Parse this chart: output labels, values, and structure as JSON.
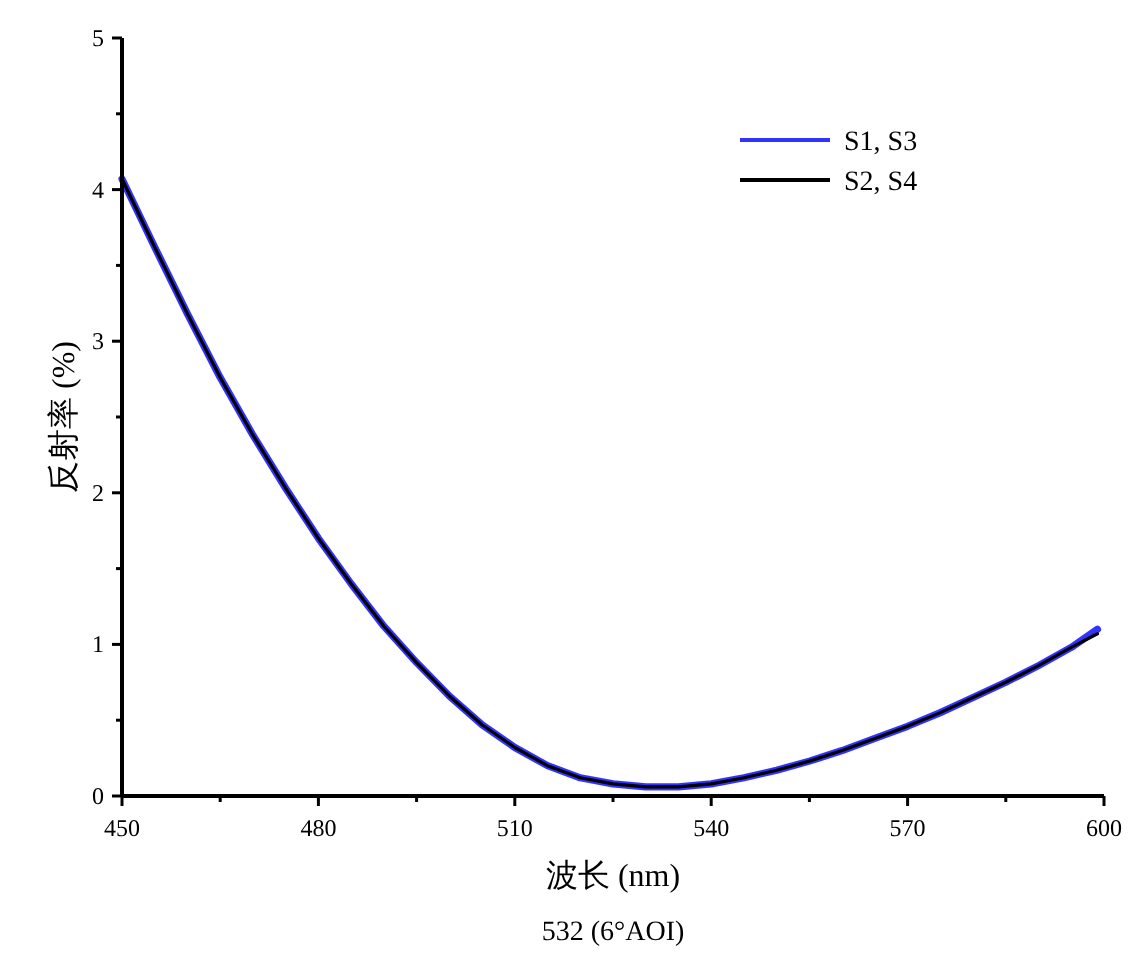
{
  "chart_data": {
    "type": "line",
    "title": "532 (6°AOI)",
    "xlabel": "波长 (nm)",
    "ylabel": "反射率 (%)",
    "x": [
      450,
      455,
      460,
      465,
      470,
      475,
      480,
      485,
      490,
      495,
      500,
      505,
      510,
      515,
      520,
      525,
      530,
      535,
      540,
      545,
      550,
      555,
      560,
      565,
      570,
      575,
      580,
      585,
      590,
      595,
      599
    ],
    "series": [
      {
        "name": "S1, S3",
        "color": "#3333ff",
        "values": [
          4.07,
          3.62,
          3.18,
          2.76,
          2.38,
          2.03,
          1.7,
          1.4,
          1.12,
          0.88,
          0.66,
          0.47,
          0.32,
          0.2,
          0.12,
          0.08,
          0.06,
          0.06,
          0.08,
          0.12,
          0.17,
          0.23,
          0.3,
          0.38,
          0.46,
          0.55,
          0.65,
          0.75,
          0.86,
          0.98,
          1.1
        ]
      },
      {
        "name": "S2, S4",
        "color": "#000000",
        "values": [
          4.07,
          3.62,
          3.18,
          2.76,
          2.38,
          2.03,
          1.7,
          1.4,
          1.12,
          0.88,
          0.66,
          0.47,
          0.32,
          0.2,
          0.12,
          0.08,
          0.06,
          0.06,
          0.08,
          0.12,
          0.17,
          0.23,
          0.3,
          0.38,
          0.46,
          0.55,
          0.65,
          0.75,
          0.86,
          0.98,
          1.07
        ]
      }
    ],
    "xlim": [
      450,
      600
    ],
    "ylim": [
      0,
      5
    ],
    "xticks": [
      450,
      {
        "value": 465,
        "label": null
      },
      480,
      {
        "value": 495,
        "label": null
      },
      510,
      {
        "value": 525,
        "label": null
      },
      540,
      {
        "value": 555,
        "label": null
      },
      570,
      {
        "value": 585,
        "label": null
      },
      600
    ],
    "yticks": [
      0,
      {
        "value": 0.5,
        "label": null
      },
      1,
      {
        "value": 1.5,
        "label": null
      },
      2,
      {
        "value": 2.5,
        "label": null
      },
      3,
      {
        "value": 3.5,
        "label": null
      },
      4,
      {
        "value": 4.5,
        "label": null
      },
      5
    ],
    "legend": "top right",
    "marker": "none",
    "line_style": "solid"
  }
}
